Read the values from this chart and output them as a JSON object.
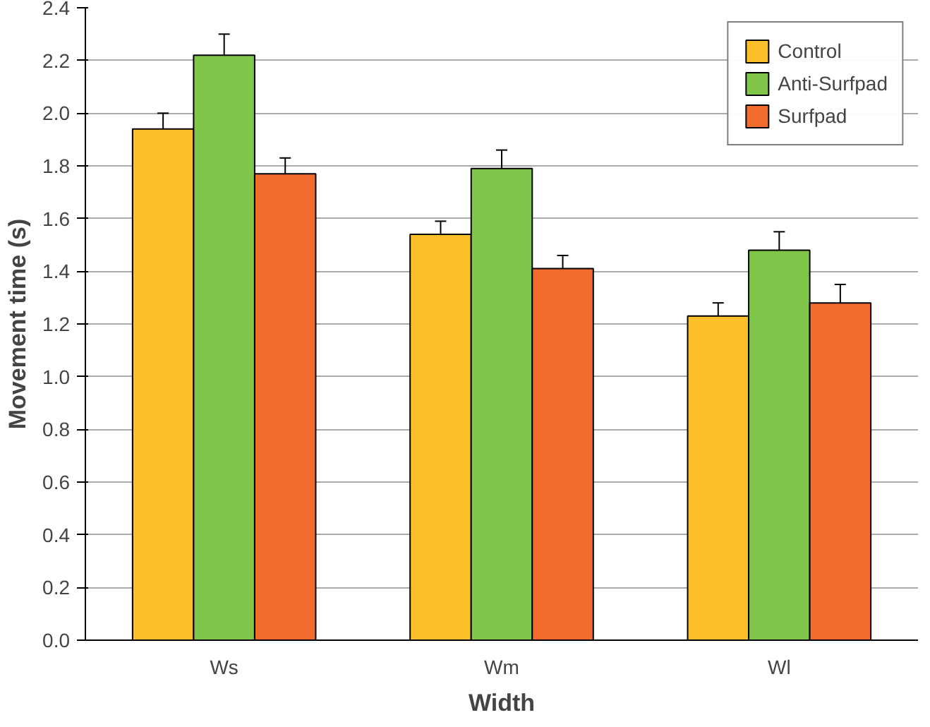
{
  "chart_data": {
    "type": "bar",
    "xlabel": "Width",
    "ylabel": "Movement time (s)",
    "categories": [
      "Ws",
      "Wm",
      "Wl"
    ],
    "series": [
      {
        "name": "Control",
        "color": "#fcbf2a",
        "values": [
          1.94,
          1.54,
          1.23
        ],
        "errors": [
          0.06,
          0.05,
          0.05
        ]
      },
      {
        "name": "Anti-Surfpad",
        "color": "#80c64b",
        "values": [
          2.22,
          1.79,
          1.48
        ],
        "errors": [
          0.08,
          0.07,
          0.07
        ]
      },
      {
        "name": "Surfpad",
        "color": "#f26c2d",
        "values": [
          1.77,
          1.41,
          1.28
        ],
        "errors": [
          0.06,
          0.05,
          0.07
        ]
      }
    ],
    "ylim": [
      0,
      2.4
    ],
    "yticks": [
      {
        "value": 0,
        "label": "0.0"
      },
      {
        "value": 0.2,
        "label": "0.2"
      },
      {
        "value": 0.4,
        "label": "0.4"
      },
      {
        "value": 0.6,
        "label": "0.6"
      },
      {
        "value": 0.8,
        "label": "0.8"
      },
      {
        "value": 1.0,
        "label": "1.0"
      },
      {
        "value": 1.2,
        "label": "1.2"
      },
      {
        "value": 1.4,
        "label": "1.4"
      },
      {
        "value": 1.6,
        "label": "1.6"
      },
      {
        "value": 1.8,
        "label": "1.8"
      },
      {
        "value": 2.0,
        "label": "2.0"
      },
      {
        "value": 2.2,
        "label": "2.2"
      },
      {
        "value": 2.4,
        "label": "2.4"
      }
    ],
    "grid": "y",
    "legend": "top right"
  }
}
